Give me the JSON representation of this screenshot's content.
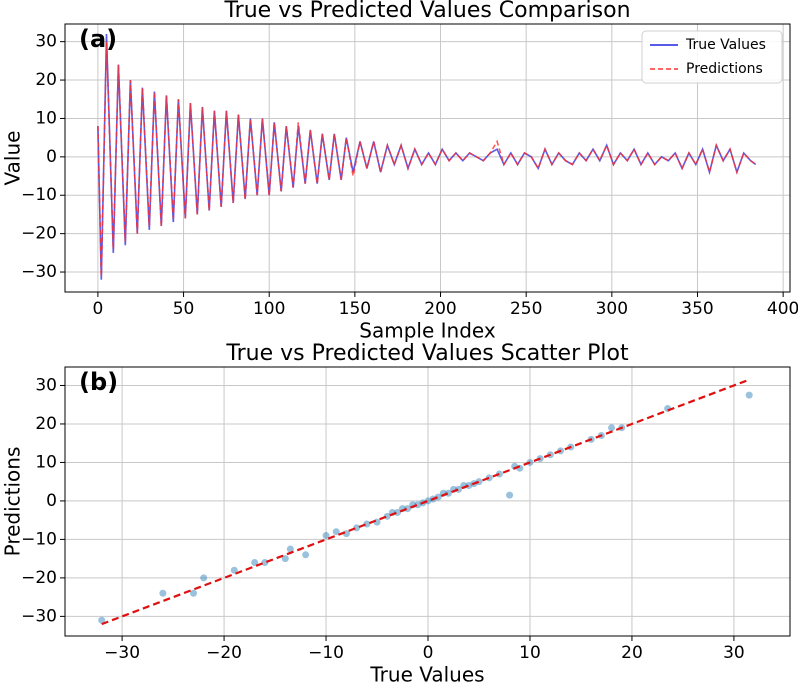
{
  "chart_data": [
    {
      "type": "line",
      "title": "True vs Predicted Values Comparison",
      "xlabel": "Sample Index",
      "ylabel": "Value",
      "annotation": "(a)",
      "grid": true,
      "legend": "upper right",
      "xlim": [
        -19.2,
        404
      ],
      "ylim": [
        -35.2,
        34.6
      ],
      "xticks": [
        0,
        50,
        100,
        150,
        200,
        250,
        300,
        350,
        400
      ],
      "yticks": [
        {
          "value": -30,
          "label": "−30"
        },
        {
          "value": -20,
          "label": "−20"
        },
        {
          "value": -10,
          "label": "−10"
        },
        0,
        10,
        20,
        30
      ],
      "x": [
        0,
        2,
        5,
        9,
        12,
        16,
        19,
        23,
        26,
        30,
        33,
        37,
        40,
        44,
        47,
        51,
        54,
        58,
        61,
        65,
        68,
        72,
        75,
        79,
        82,
        86,
        89,
        93,
        96,
        100,
        103,
        107,
        110,
        114,
        117,
        121,
        124,
        128,
        131,
        135,
        138,
        142,
        145,
        149,
        153,
        157,
        161,
        165,
        169,
        173,
        177,
        181,
        185,
        189,
        193,
        197,
        201,
        205,
        209,
        213,
        217,
        221,
        225,
        229,
        233,
        237,
        241,
        245,
        249,
        253,
        257,
        261,
        265,
        269,
        273,
        277,
        281,
        285,
        289,
        293,
        297,
        301,
        305,
        309,
        313,
        317,
        321,
        325,
        329,
        333,
        337,
        341,
        345,
        349,
        353,
        357,
        361,
        365,
        369,
        373,
        377,
        381,
        384
      ],
      "series": [
        {
          "name": "True Values",
          "color": "#2424e0",
          "style": "solid",
          "values": [
            8,
            -32,
            32,
            -25,
            24,
            -23,
            20,
            -20,
            18,
            -19,
            17,
            -18,
            16,
            -17,
            15,
            -16,
            14,
            -15,
            13,
            -14,
            12,
            -13,
            12,
            -12,
            11,
            -11,
            10,
            -10,
            10,
            -10,
            9,
            -9,
            8,
            -8,
            8,
            -7,
            7,
            -7,
            6,
            -6,
            6,
            -6,
            5,
            -4,
            4,
            -3,
            4,
            -4,
            3,
            -2,
            3,
            -3,
            2,
            -2,
            1,
            -2,
            2,
            -1,
            1,
            -1,
            1,
            0,
            -1,
            1,
            2,
            -2,
            1,
            -2,
            1,
            0,
            -3,
            2,
            -2,
            1,
            -1,
            -2,
            1,
            -1,
            2,
            -1,
            3,
            -2,
            1,
            -1,
            2,
            -2,
            1,
            -2,
            0,
            -1,
            1,
            -3,
            1,
            -2,
            2,
            -4,
            3,
            -1,
            2,
            -4,
            1,
            -1,
            -2
          ]
        },
        {
          "name": "Predictions",
          "color": "#ff3030",
          "style": "dashed",
          "values": [
            8,
            -31,
            30,
            -24,
            24,
            -22,
            20,
            -20,
            18,
            -18,
            17,
            -18,
            16,
            -16,
            15,
            -16,
            14,
            -15,
            13,
            -14,
            12,
            -13,
            12,
            -12,
            11,
            -11,
            10,
            -10,
            10,
            -10,
            9,
            -9,
            8,
            -8,
            9,
            -7,
            7,
            -7,
            6,
            -6,
            6,
            -6,
            5,
            -5,
            4,
            -3,
            4,
            -4,
            3,
            -2,
            3,
            -3,
            2,
            -2,
            1,
            -2,
            2,
            -1,
            1,
            -1,
            1,
            0,
            -1,
            1,
            4,
            -2,
            1,
            -2,
            1,
            0,
            -3,
            2,
            -2,
            1,
            -1,
            -2,
            1,
            -1,
            2,
            -1,
            3,
            -2,
            1,
            -1,
            2,
            -2,
            1,
            -2,
            0,
            -1,
            1,
            -3,
            1,
            -2,
            2,
            -4,
            3,
            -1,
            2,
            -4,
            1,
            -1,
            -2
          ]
        }
      ]
    },
    {
      "type": "scatter",
      "title": "True vs Predicted Values Scatter Plot",
      "xlabel": "True Values",
      "ylabel": "Predictions",
      "annotation": "(b)",
      "grid": true,
      "color": "#1f77b4",
      "xlim": [
        -35.6,
        35.5
      ],
      "ylim": [
        -35.1,
        34.8
      ],
      "xticks": [
        {
          "value": -30,
          "label": "−30"
        },
        {
          "value": -20,
          "label": "−20"
        },
        {
          "value": -10,
          "label": "−10"
        },
        0,
        10,
        20,
        30
      ],
      "yticks": [
        {
          "value": -30,
          "label": "−30"
        },
        {
          "value": -20,
          "label": "−20"
        },
        {
          "value": -10,
          "label": "−10"
        },
        0,
        10,
        20,
        30
      ],
      "x": [
        -32,
        -26,
        -23,
        -22,
        -19,
        -17,
        -16,
        -14,
        -13.5,
        -12,
        -10,
        -9,
        -8,
        -7,
        -6,
        -5,
        -4,
        -3.5,
        -3,
        -2.5,
        -2,
        -1.5,
        -1,
        -0.5,
        0,
        0.5,
        1,
        1.5,
        2,
        2.5,
        3,
        3.5,
        4,
        4.5,
        5,
        6,
        7,
        8,
        8.5,
        9,
        10,
        11,
        12,
        13,
        14,
        16,
        17,
        18,
        19,
        23.5,
        31.5
      ],
      "values": [
        -31,
        -24,
        -24,
        -20,
        -18,
        -16,
        -16,
        -15,
        -12.5,
        -14,
        -9,
        -8,
        -8.5,
        -7,
        -6,
        -5.5,
        -4,
        -3,
        -3,
        -2,
        -2,
        -1,
        -1,
        -0.5,
        0,
        0.5,
        1,
        2,
        2,
        3,
        3,
        4,
        4,
        4.5,
        5,
        6,
        7,
        1.5,
        9,
        8.5,
        10,
        11,
        12,
        13,
        14,
        16,
        17,
        19,
        19,
        24,
        27.5
      ],
      "reference_line": {
        "x": [
          -32,
          31.5
        ],
        "values": [
          -32,
          31.5
        ],
        "color": "#e01010"
      }
    }
  ]
}
